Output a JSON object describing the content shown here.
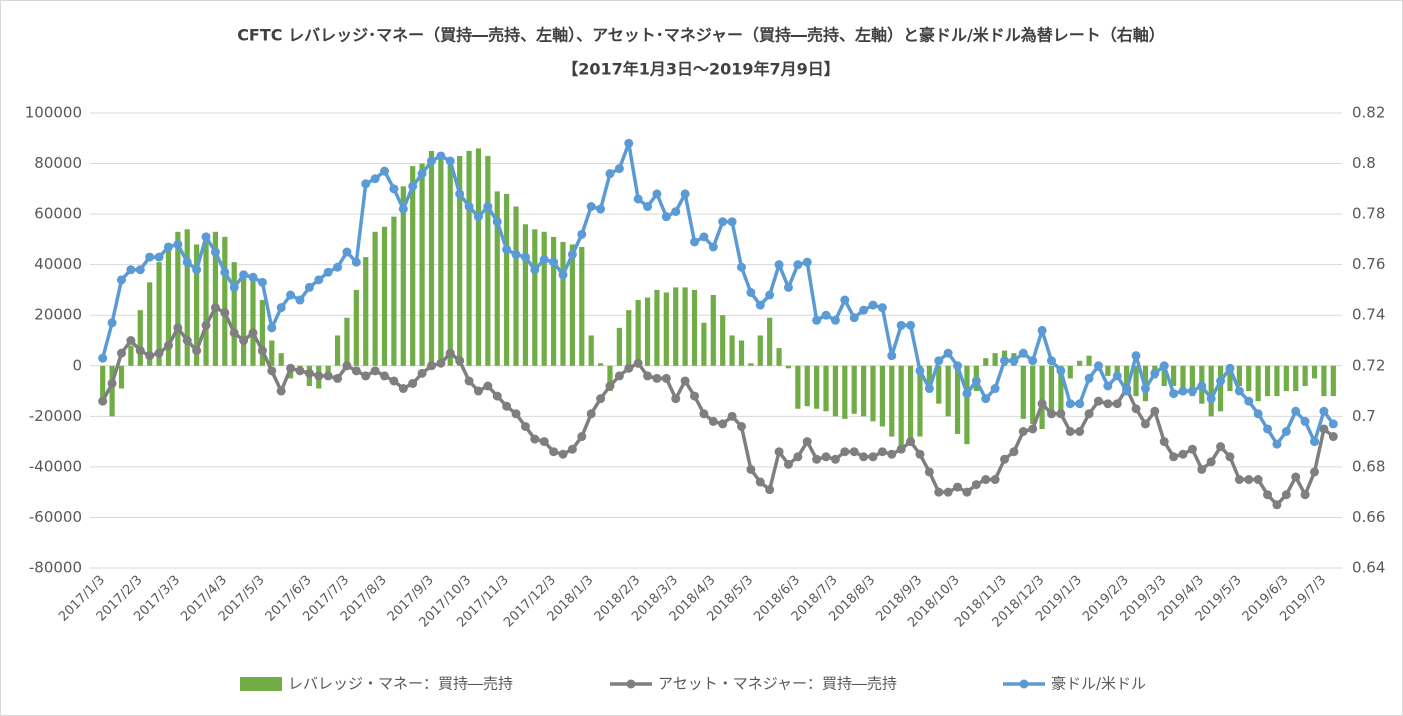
{
  "chart_data": {
    "type": "combo",
    "title": "CFTC レバレッジ･マネー（買持―売持、左軸）、アセット･マネジャー（買持―売持、左軸）と豪ドル/米ドル為替レート（右軸）",
    "subtitle": "【2017年1月3日～2019年7月9日】",
    "categories": [
      "2017/1/3",
      null,
      null,
      null,
      "2017/2/3",
      null,
      null,
      null,
      "2017/3/3",
      null,
      null,
      null,
      null,
      "2017/4/3",
      null,
      null,
      null,
      "2017/5/3",
      null,
      null,
      null,
      null,
      "2017/6/3",
      null,
      null,
      null,
      "2017/7/3",
      null,
      null,
      null,
      "2017/8/3",
      null,
      null,
      null,
      null,
      "2017/9/3",
      null,
      null,
      null,
      "2017/10/3",
      null,
      null,
      null,
      "2017/11/3",
      null,
      null,
      null,
      null,
      "2017/12/3",
      null,
      null,
      null,
      "2018/1/3",
      null,
      null,
      null,
      null,
      "2018/2/3",
      null,
      null,
      null,
      "2018/3/3",
      null,
      null,
      null,
      "2018/4/3",
      null,
      null,
      null,
      "2018/5/3",
      null,
      null,
      null,
      null,
      "2018/6/3",
      null,
      null,
      null,
      "2018/7/3",
      null,
      null,
      null,
      "2018/8/3",
      null,
      null,
      null,
      null,
      "2018/9/3",
      null,
      null,
      null,
      "2018/10/3",
      null,
      null,
      null,
      null,
      "2018/11/3",
      null,
      null,
      null,
      "2018/12/3",
      null,
      null,
      null,
      "2019/1/3",
      null,
      null,
      null,
      null,
      "2019/2/3",
      null,
      null,
      null,
      "2019/3/3",
      null,
      null,
      null,
      "2019/4/3",
      null,
      null,
      null,
      "2019/5/3",
      null,
      null,
      null,
      null,
      "2019/6/3",
      null,
      null,
      null,
      "2019/7/3",
      null
    ],
    "series": [
      {
        "name": "レバレッジ・マネー：買持―売持",
        "type": "bar",
        "color": "#70ad47",
        "values": [
          -13000,
          -20000,
          -9000,
          8000,
          22000,
          33000,
          41000,
          48000,
          53000,
          54000,
          48000,
          49000,
          53000,
          51000,
          41000,
          37000,
          36000,
          26000,
          10000,
          5000,
          -5000,
          -3000,
          -8000,
          -9000,
          -3000,
          12000,
          19000,
          30000,
          43000,
          53000,
          55000,
          59000,
          71000,
          79000,
          80000,
          85000,
          84000,
          81000,
          83000,
          85000,
          86000,
          83000,
          69000,
          68000,
          63000,
          56000,
          54000,
          53000,
          51000,
          49000,
          48000,
          47000,
          12000,
          1000,
          -10000,
          15000,
          22000,
          26000,
          27000,
          30000,
          29000,
          31000,
          31000,
          30000,
          17000,
          28000,
          20000,
          12000,
          10000,
          1000,
          12000,
          19000,
          7000,
          -1000,
          -17000,
          -16000,
          -17000,
          -18000,
          -20000,
          -21000,
          -19000,
          -20000,
          -22000,
          -24000,
          -28000,
          -32000,
          -30000,
          -28000,
          -10000,
          -15000,
          -20000,
          -27000,
          -31000,
          -10000,
          3000,
          5000,
          6000,
          5000,
          -21000,
          -23000,
          -25000,
          -18000,
          -20000,
          -5000,
          2000,
          4000,
          -2000,
          -4000,
          -4000,
          -10000,
          -12000,
          -14000,
          -5000,
          -8000,
          -8000,
          -10000,
          -12000,
          -15000,
          -20000,
          -18000,
          -10000,
          -8000,
          -10000,
          -14000,
          -12000,
          -12000,
          -10000,
          -10000,
          -8000,
          -5000,
          -12000,
          -12000
        ]
      },
      {
        "name": "アセット・マネジャー：買持―売持",
        "type": "line",
        "color": "#7f7f7f",
        "values": [
          -14000,
          -7000,
          5000,
          10000,
          6000,
          4000,
          5000,
          8000,
          15000,
          10000,
          6000,
          16000,
          23000,
          21000,
          13000,
          10000,
          13000,
          6000,
          -2000,
          -10000,
          -1000,
          -2000,
          -3000,
          -4000,
          -4000,
          -5000,
          0,
          -2000,
          -4000,
          -2000,
          -4000,
          -6000,
          -9000,
          -7000,
          -3000,
          0,
          1000,
          5000,
          2000,
          -6000,
          -10000,
          -8000,
          -12000,
          -16000,
          -19000,
          -24000,
          -29000,
          -30000,
          -34000,
          -35000,
          -33000,
          -28000,
          -19000,
          -13000,
          -8000,
          -4000,
          -1000,
          1000,
          -4000,
          -5000,
          -5000,
          -13000,
          -6000,
          -12000,
          -19000,
          -22000,
          -23000,
          -20000,
          -24000,
          -41000,
          -46000,
          -49000,
          -34000,
          -39000,
          -36000,
          -30000,
          -37000,
          -36000,
          -37000,
          -34000,
          -34000,
          -36000,
          -36000,
          -34000,
          -35000,
          -33000,
          -30000,
          -35000,
          -42000,
          -50000,
          -50000,
          -48000,
          -50000,
          -47000,
          -45000,
          -45000,
          -37000,
          -34000,
          -26000,
          -25000,
          -15000,
          -19000,
          -19000,
          -26000,
          -26000,
          -19000,
          -14000,
          -15000,
          -15000,
          -9000,
          -17000,
          -23000,
          -18000,
          -30000,
          -36000,
          -35000,
          -33000,
          -41000,
          -38000,
          -32000,
          -36000,
          -45000,
          -45000,
          -45000,
          -51000,
          -55000,
          -51000,
          -44000,
          -51000,
          -42000,
          -25000,
          -28000
        ]
      },
      {
        "name": "豪ドル/米ドル",
        "type": "line",
        "axis": "y2",
        "color": "#5b9bd5",
        "values": [
          0.723,
          0.737,
          0.754,
          0.758,
          0.758,
          0.763,
          0.763,
          0.767,
          0.768,
          0.761,
          0.758,
          0.771,
          0.765,
          0.757,
          0.751,
          0.756,
          0.755,
          0.753,
          0.735,
          0.743,
          0.748,
          0.746,
          0.751,
          0.754,
          0.757,
          0.759,
          0.765,
          0.761,
          0.792,
          0.794,
          0.797,
          0.79,
          0.782,
          0.791,
          0.796,
          0.801,
          0.803,
          0.801,
          0.788,
          0.783,
          0.779,
          0.783,
          0.777,
          0.766,
          0.764,
          0.763,
          0.758,
          0.762,
          0.761,
          0.756,
          0.764,
          0.772,
          0.783,
          0.782,
          0.796,
          0.798,
          0.808,
          0.786,
          0.783,
          0.788,
          0.779,
          0.781,
          0.788,
          0.769,
          0.771,
          0.767,
          0.777,
          0.777,
          0.759,
          0.749,
          0.744,
          0.748,
          0.76,
          0.751,
          0.76,
          0.761,
          0.738,
          0.74,
          0.738,
          0.746,
          0.739,
          0.742,
          0.744,
          0.743,
          0.724,
          0.736,
          0.736,
          0.718,
          0.711,
          0.722,
          0.725,
          0.72,
          0.709,
          0.714,
          0.707,
          0.711,
          0.722,
          0.722,
          0.725,
          0.722,
          0.734,
          0.722,
          0.718,
          0.705,
          0.705,
          0.715,
          0.72,
          0.712,
          0.716,
          0.71,
          0.724,
          0.711,
          0.717,
          0.72,
          0.709,
          0.71,
          0.71,
          0.712,
          0.707,
          0.714,
          0.719,
          0.71,
          0.706,
          0.701,
          0.695,
          0.689,
          0.694,
          0.702,
          0.698,
          0.69,
          0.702,
          0.697
        ]
      }
    ],
    "ylim": [
      -80000,
      100000
    ],
    "yticks": [
      -80000,
      -60000,
      -40000,
      -20000,
      0,
      20000,
      40000,
      60000,
      80000,
      100000
    ],
    "y2lim": [
      0.64,
      0.82
    ],
    "y2ticks": [
      0.64,
      0.66,
      0.68,
      0.7,
      0.72,
      0.74,
      0.76,
      0.78,
      0.8,
      0.82
    ],
    "grid": true,
    "legend": "bottom"
  }
}
